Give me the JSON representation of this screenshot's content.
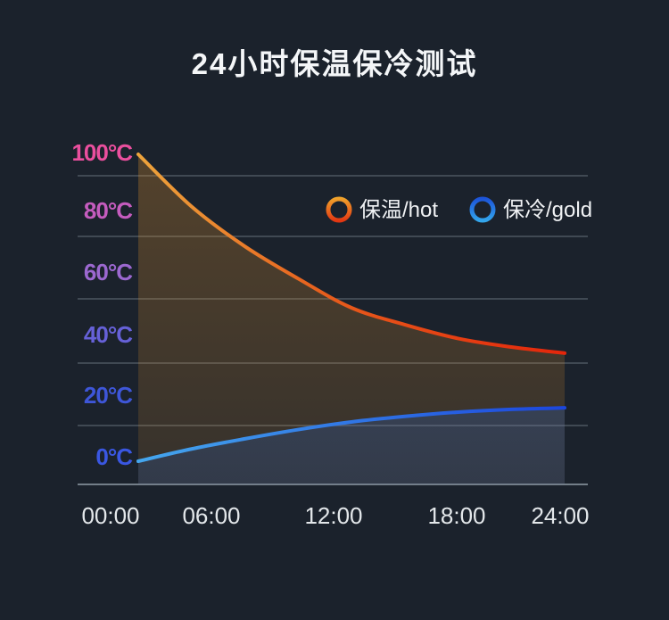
{
  "page": {
    "background_color": "#1b222c",
    "title": "24小时保温保冷测试"
  },
  "legend": {
    "items": [
      {
        "label": "保温/hot",
        "ring_color_top": "#f0a42c",
        "ring_color_bottom": "#e23612"
      },
      {
        "label": "保冷/gold",
        "ring_color_top": "#1c53d8",
        "ring_color_bottom": "#33a7ec"
      }
    ]
  },
  "chart_data": {
    "type": "line",
    "title": "24小时保温保冷测试",
    "xlabel": "",
    "ylabel": "",
    "x_tick_labels": [
      "00:00",
      "06:00",
      "12:00",
      "18:00",
      "24:00"
    ],
    "y_tick_labels": [
      {
        "text": "100°C",
        "color": "#ea4f9e"
      },
      {
        "text": "80°C",
        "color": "#c55cbe"
      },
      {
        "text": "60°C",
        "color": "#9c68d0"
      },
      {
        "text": "40°C",
        "color": "#6661d8"
      },
      {
        "text": "20°C",
        "color": "#3e56d8"
      },
      {
        "text": "0°C",
        "color": "#3a57e2"
      }
    ],
    "ylim": [
      0,
      100
    ],
    "xlim_hours": [
      0,
      24
    ],
    "grid": "horizontal-only",
    "legend_position": "top-right-inside",
    "sample_hours": [
      0,
      3,
      6,
      9,
      12,
      15,
      18,
      21,
      24
    ],
    "series": [
      {
        "name": "保温/hot",
        "unit": "°C",
        "values_at_ticks": [
          100,
          70,
          50,
          40,
          35
        ],
        "samples_every_3h": [
          100,
          83,
          70,
          59.5,
          50,
          44.5,
          40,
          37.2,
          35.2
        ],
        "line_color_start": "#eda43c",
        "line_color_end": "#e4260b",
        "area_fill": "rgba(232,150,42,0.26)"
      },
      {
        "name": "保冷/gold",
        "unit": "°C",
        "values_at_ticks": [
          0,
          7,
          13,
          16,
          17
        ],
        "samples_every_3h": [
          0,
          4,
          7.3,
          10.3,
          12.8,
          14.6,
          16,
          16.9,
          17.4
        ],
        "line_color_start": "#45a7ee",
        "line_color_end": "#1c46dd",
        "area_fill": "rgba(32,105,225,0.20)"
      }
    ]
  }
}
